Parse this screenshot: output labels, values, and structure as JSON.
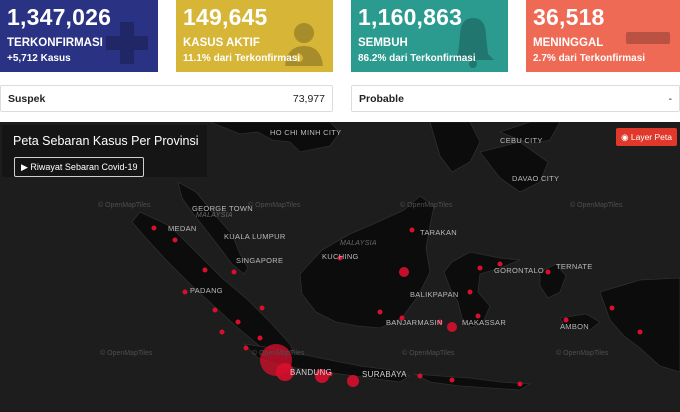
{
  "cards": [
    {
      "value": "1,347,026",
      "label": "TERKONFIRMASI",
      "sub": "+5,712 Kasus",
      "color": "#2a3284",
      "icon": "plus-icon"
    },
    {
      "value": "149,645",
      "label": "KASUS AKTIF",
      "sub": "11.1% dari Terkonfirmasi",
      "color": "#d6b537",
      "icon": "patient-icon"
    },
    {
      "value": "1,160,863",
      "label": "SEMBUH",
      "sub": "86.2% dari Terkonfirmasi",
      "color": "#2b9a8f",
      "icon": "bell-icon"
    },
    {
      "value": "36,518",
      "label": "MENINGGAL",
      "sub": "2.7% dari Terkonfirmasi",
      "color": "#ef6a55",
      "icon": "minus-icon"
    }
  ],
  "suspek": {
    "label": "Suspek",
    "value": "73,977"
  },
  "probable": {
    "label": "Probable",
    "value": "-"
  },
  "map": {
    "title": "Peta Sebaran Kasus Per Provinsi",
    "history_button": "Riwayat Sebaran Covid-19",
    "layer_button": "Layer Peta",
    "tiles_credit": "© OpenMapTiles",
    "labels": {
      "hcm": "HO CHI MINH CITY",
      "cebu": "CEBU CITY",
      "dav": "DAVAO CITY",
      "medan": "MEDAN",
      "gt": "GEORGE TOWN",
      "malaysia": "MALAYSIA",
      "kl": "KUALA LUMPUR",
      "sg": "SINGAPORE",
      "kuching": "KUCHING",
      "malaysia2": "MALAYSIA",
      "tarakan": "TARAKAN",
      "padang": "PADANG",
      "gorontalo": "GORONTALO",
      "ternate": "TERNATE",
      "balikpapan": "BALIKPAPAN",
      "makassar": "MAKASSAR",
      "banjarmasin": "BANJARMASIN",
      "ambon": "AMBON",
      "bandung": "BANDUNG",
      "surabaya": "SURABAYA"
    }
  }
}
